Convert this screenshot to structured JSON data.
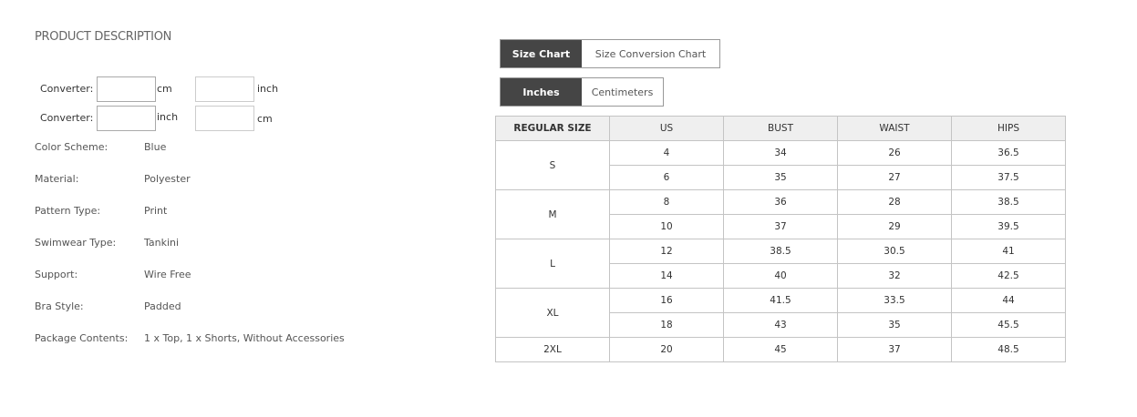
{
  "description": {
    "title": "PRODUCT DESCRIPTION",
    "converters": [
      {
        "label": "Converter:",
        "unit1": "cm",
        "unit2": "inch",
        "value1": "",
        "value2": ""
      },
      {
        "label": "Converter:",
        "unit1": "inch",
        "unit2": "cm",
        "value1": "",
        "value2": ""
      }
    ],
    "attributes": [
      {
        "label": "Color Scheme:",
        "value": "Blue"
      },
      {
        "label": "Material:",
        "value": "Polyester"
      },
      {
        "label": "Pattern Type:",
        "value": "Print"
      },
      {
        "label": "Swimwear Type:",
        "value": "Tankini"
      },
      {
        "label": "Support:",
        "value": "Wire Free"
      },
      {
        "label": "Bra Style:",
        "value": "Padded"
      },
      {
        "label": "Package Contents:",
        "value": "1 x Top, 1 x Shorts, Without Accessories"
      }
    ]
  },
  "chart_tabs": [
    {
      "label": "Size Chart",
      "active": true
    },
    {
      "label": "Size Conversion Chart",
      "active": false
    }
  ],
  "unit_tabs": [
    {
      "label": "Inches",
      "active": true
    },
    {
      "label": "Centimeters",
      "active": false
    }
  ],
  "table": {
    "headers": [
      "REGULAR SIZE",
      "US",
      "BUST",
      "WAIST",
      "HIPS"
    ],
    "groups": [
      {
        "size": "S",
        "rows": [
          [
            "4",
            "34",
            "26",
            "36.5"
          ],
          [
            "6",
            "35",
            "27",
            "37.5"
          ]
        ]
      },
      {
        "size": "M",
        "rows": [
          [
            "8",
            "36",
            "28",
            "38.5"
          ],
          [
            "10",
            "37",
            "29",
            "39.5"
          ]
        ]
      },
      {
        "size": "L",
        "rows": [
          [
            "12",
            "38.5",
            "30.5",
            "41"
          ],
          [
            "14",
            "40",
            "32",
            "42.5"
          ]
        ]
      },
      {
        "size": "XL",
        "rows": [
          [
            "16",
            "41.5",
            "33.5",
            "44"
          ],
          [
            "18",
            "43",
            "35",
            "45.5"
          ]
        ]
      },
      {
        "size": "2XL",
        "rows": [
          [
            "20",
            "45",
            "37",
            "48.5"
          ]
        ]
      }
    ]
  }
}
